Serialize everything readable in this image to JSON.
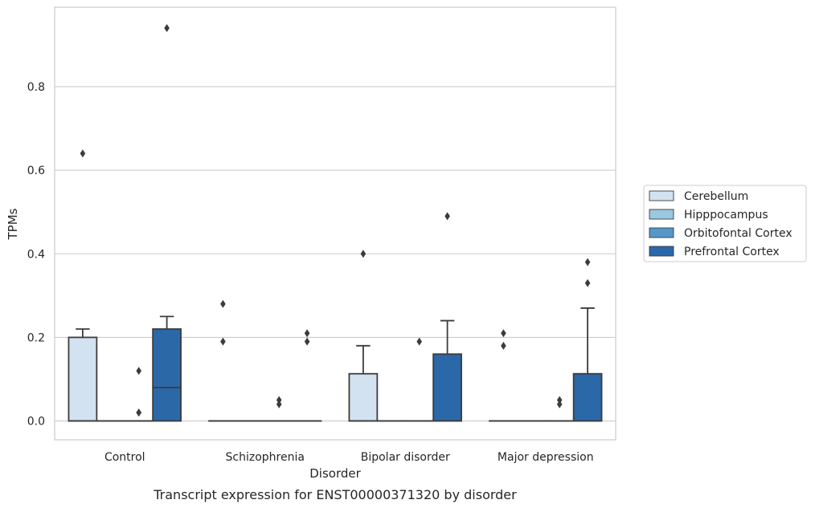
{
  "chart_data": {
    "type": "boxplot",
    "caption": "Transcript expression for ENST00000371320 by disorder",
    "xlabel": "Disorder",
    "ylabel": "TPMs",
    "ylim": [
      -0.045,
      0.99
    ],
    "yticks": [
      0.0,
      0.2,
      0.4,
      0.6,
      0.8
    ],
    "ytick_labels": [
      "0.0",
      "0.2",
      "0.4",
      "0.6",
      "0.8"
    ],
    "grid": "horizontal",
    "legend_placement": "right",
    "categories": [
      "Control",
      "Schizophrenia",
      "Bipolar disorder",
      "Major depression"
    ],
    "series": [
      {
        "name": "Cerebellum",
        "color": "#d2e2f1",
        "boxes": [
          {
            "q1": 0.0,
            "median": 0.0,
            "q3": 0.2,
            "whisker_low": 0.0,
            "whisker_high": 0.22,
            "outliers": [
              0.64
            ]
          },
          {
            "q1": 0.0,
            "median": 0.0,
            "q3": 0.0,
            "whisker_low": 0.0,
            "whisker_high": 0.0,
            "outliers": [
              0.19,
              0.28
            ]
          },
          {
            "q1": 0.0,
            "median": 0.0,
            "q3": 0.113,
            "whisker_low": 0.0,
            "whisker_high": 0.18,
            "outliers": [
              0.4
            ]
          },
          {
            "q1": 0.0,
            "median": 0.0,
            "q3": 0.0,
            "whisker_low": 0.0,
            "whisker_high": 0.0,
            "outliers": [
              0.18,
              0.21
            ]
          }
        ]
      },
      {
        "name": "Hipppocampus",
        "color": "#9ac8e0",
        "boxes": [
          {
            "q1": 0.0,
            "median": 0.0,
            "q3": 0.0,
            "whisker_low": 0.0,
            "whisker_high": 0.0,
            "outliers": []
          },
          {
            "q1": 0.0,
            "median": 0.0,
            "q3": 0.0,
            "whisker_low": 0.0,
            "whisker_high": 0.0,
            "outliers": []
          },
          {
            "q1": 0.0,
            "median": 0.0,
            "q3": 0.0,
            "whisker_low": 0.0,
            "whisker_high": 0.0,
            "outliers": []
          },
          {
            "q1": 0.0,
            "median": 0.0,
            "q3": 0.0,
            "whisker_low": 0.0,
            "whisker_high": 0.0,
            "outliers": []
          }
        ]
      },
      {
        "name": "Orbitofontal Cortex",
        "color": "#5597c9",
        "boxes": [
          {
            "q1": 0.0,
            "median": 0.0,
            "q3": 0.0,
            "whisker_low": 0.0,
            "whisker_high": 0.0,
            "outliers": [
              0.02,
              0.02,
              0.12
            ]
          },
          {
            "q1": 0.0,
            "median": 0.0,
            "q3": 0.0,
            "whisker_low": 0.0,
            "whisker_high": 0.0,
            "outliers": [
              0.04,
              0.05
            ]
          },
          {
            "q1": 0.0,
            "median": 0.0,
            "q3": 0.0,
            "whisker_low": 0.0,
            "whisker_high": 0.0,
            "outliers": [
              0.19
            ]
          },
          {
            "q1": 0.0,
            "median": 0.0,
            "q3": 0.0,
            "whisker_low": 0.0,
            "whisker_high": 0.0,
            "outliers": [
              0.04,
              0.05
            ]
          }
        ]
      },
      {
        "name": "Prefrontal Cortex",
        "color": "#2a68a8",
        "boxes": [
          {
            "q1": 0.0,
            "median": 0.08,
            "q3": 0.22,
            "whisker_low": 0.0,
            "whisker_high": 0.25,
            "outliers": [
              0.94
            ]
          },
          {
            "q1": 0.0,
            "median": 0.0,
            "q3": 0.0,
            "whisker_low": 0.0,
            "whisker_high": 0.0,
            "outliers": [
              0.19,
              0.21
            ]
          },
          {
            "q1": 0.0,
            "median": 0.0,
            "q3": 0.16,
            "whisker_low": 0.0,
            "whisker_high": 0.24,
            "outliers": [
              0.49
            ]
          },
          {
            "q1": 0.0,
            "median": 0.0,
            "q3": 0.113,
            "whisker_low": 0.0,
            "whisker_high": 0.27,
            "outliers": [
              0.33,
              0.38
            ]
          }
        ]
      }
    ]
  }
}
